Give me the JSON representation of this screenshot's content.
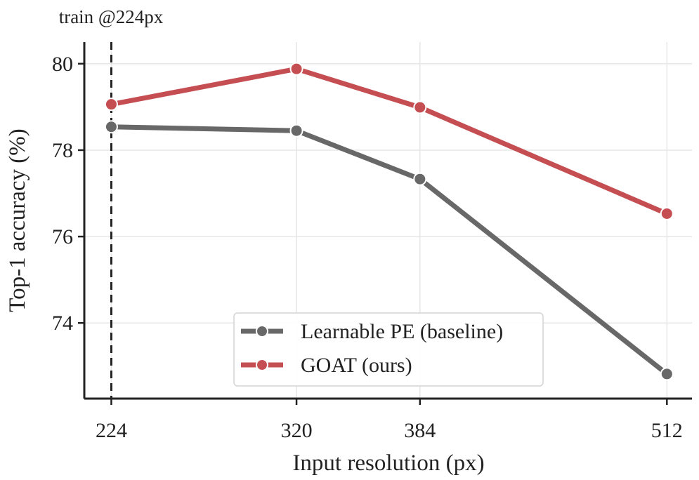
{
  "chart_data": {
    "type": "line",
    "title": "",
    "xlabel": "Input resolution (px)",
    "ylabel": "Top-1 accuracy (%)",
    "x": [
      224,
      320,
      384,
      512
    ],
    "x_ticks": [
      "224",
      "320",
      "384",
      "512"
    ],
    "y_ticks": [
      74,
      76,
      78,
      80
    ],
    "xlim": [
      210,
      525
    ],
    "ylim": [
      72.25,
      80.5
    ],
    "grid": true,
    "legend_position": "lower-center",
    "annotation": {
      "text": "train @224px",
      "x": 224
    },
    "series": [
      {
        "name": "Learnable PE (baseline)",
        "color": "#686868",
        "values": [
          78.54,
          78.45,
          77.33,
          72.82
        ]
      },
      {
        "name": "GOAT (ours)",
        "color": "#c44e52",
        "values": [
          79.06,
          79.88,
          78.99,
          76.53
        ]
      }
    ]
  }
}
